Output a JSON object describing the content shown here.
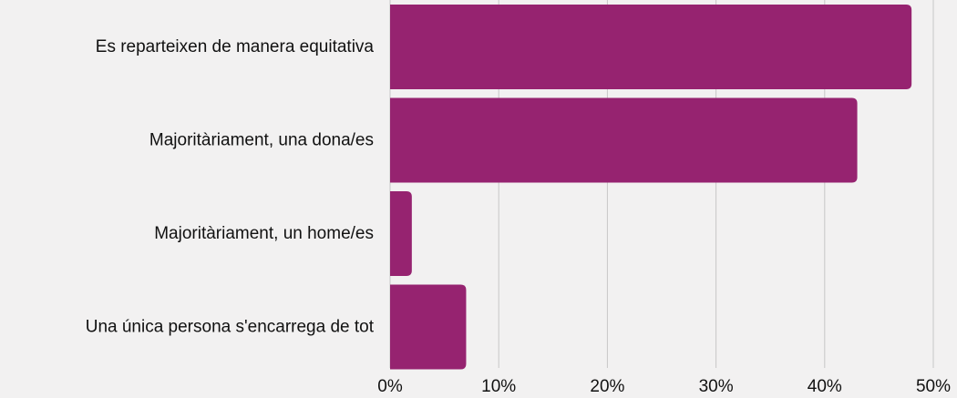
{
  "chart_data": {
    "type": "bar",
    "orientation": "horizontal",
    "categories": [
      "Es reparteixen de manera equitativa",
      "Majoritàriament, una dona/es",
      "Majoritàriament, un home/es",
      "Una única persona s'encarrega de tot"
    ],
    "values": [
      48,
      43,
      2,
      7
    ],
    "value_unit": "%",
    "xlim": [
      0,
      50
    ],
    "x_ticks": [
      "0%",
      "10%",
      "20%",
      "30%",
      "40%",
      "50%"
    ],
    "x_tick_values": [
      0,
      10,
      20,
      30,
      40,
      50
    ],
    "grid": "vertical",
    "legend": "none",
    "colors": {
      "bar": "#962370",
      "grid": "#c7c7c7",
      "background": "#f2f1f1",
      "text": "#111111"
    }
  }
}
